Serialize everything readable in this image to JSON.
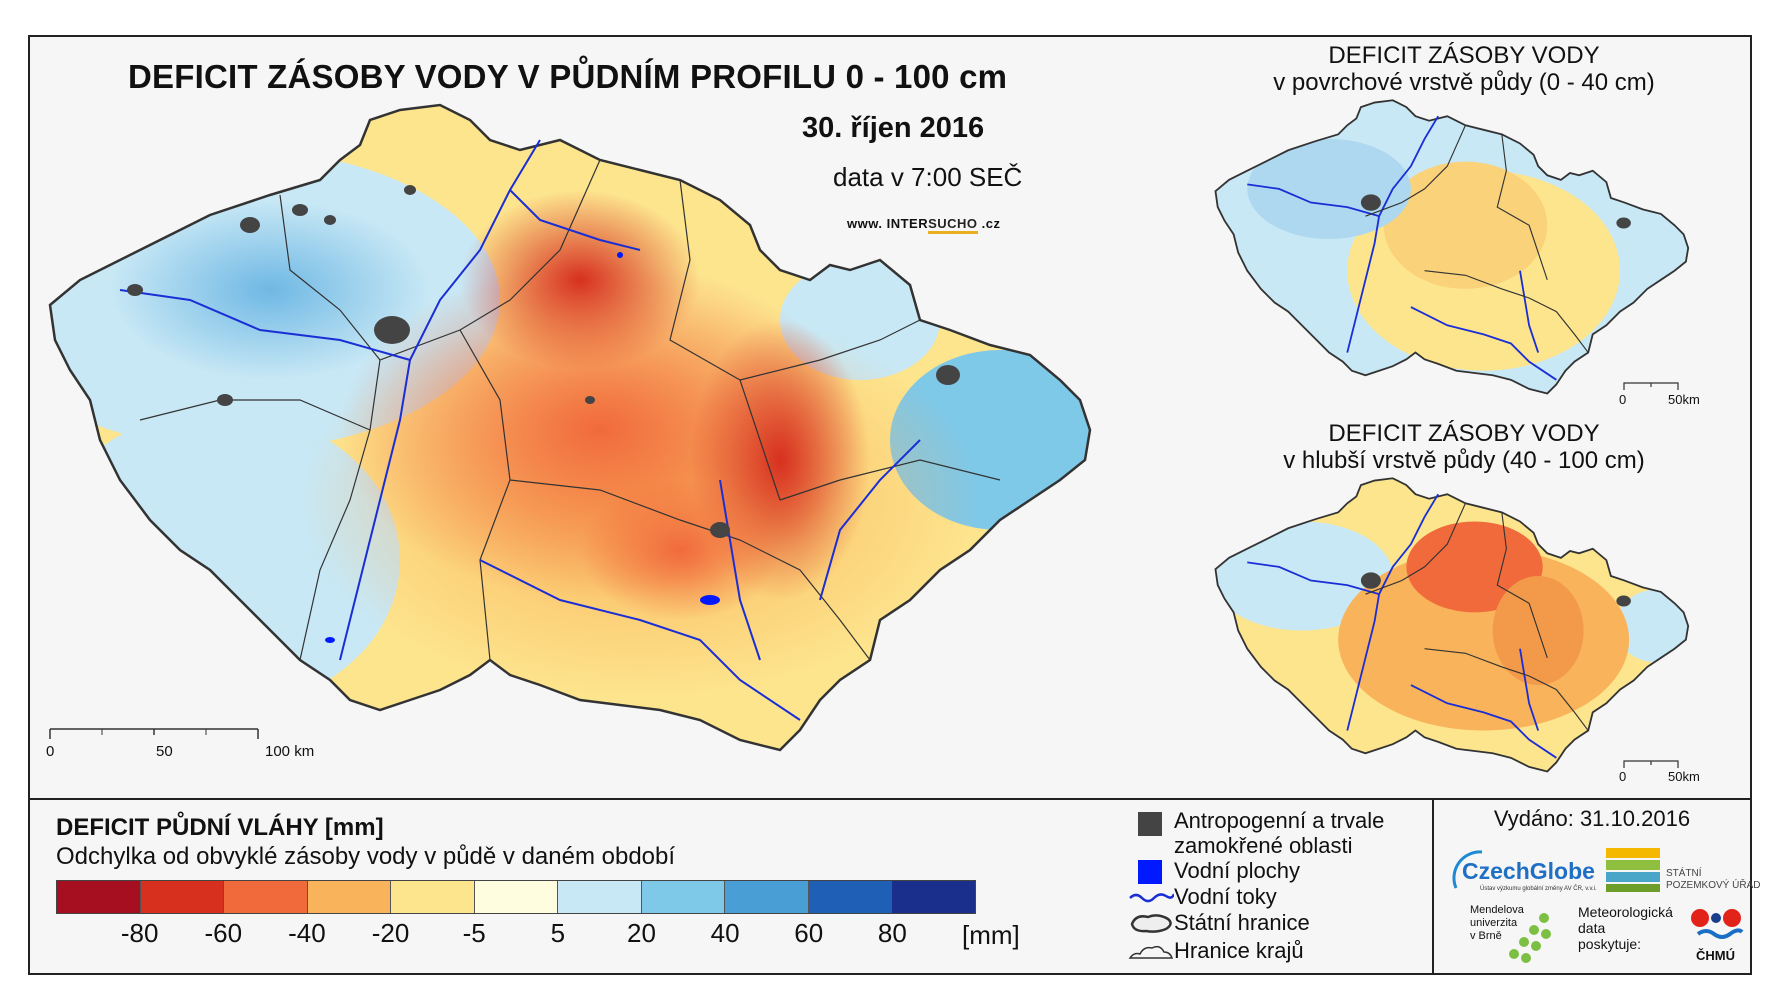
{
  "main": {
    "title": "DEFICIT ZÁSOBY VODY V PŮDNÍM PROFILU 0 - 100 cm",
    "date": "30. říjen 2016",
    "time": "data v 7:00 SEČ",
    "website": {
      "prefix": "www. INTER",
      "highlight": "SUCHO",
      "suffix": " .cz"
    },
    "scale": {
      "labels": [
        "0",
        "50",
        "100 km"
      ]
    }
  },
  "inset_top": {
    "title_line1": "DEFICIT ZÁSOBY VODY",
    "title_line2": "v povrchové vrstvě půdy (0 - 40 cm)",
    "scale": {
      "labels": [
        "0",
        "50km"
      ]
    }
  },
  "inset_bottom": {
    "title_line1": "DEFICIT ZÁSOBY VODY",
    "title_line2": "v hlubší vrstvě půdy (40 - 100 cm)",
    "scale": {
      "labels": [
        "0",
        "50km"
      ]
    }
  },
  "legend": {
    "title": "DEFICIT PŮDNÍ VLÁHY [mm]",
    "subtitle": "Odchylka od obvyklé zásoby vody v půdě v daném období",
    "colors": [
      "#a50f1f",
      "#d7301f",
      "#f16a3c",
      "#f9b35a",
      "#fde58e",
      "#fffde0",
      "#c8e8f5",
      "#7ec8e8",
      "#4a9ed6",
      "#1f5fb5",
      "#1a2e8c"
    ],
    "tick_labels": [
      "-80",
      "-60",
      "-40",
      "-20",
      "-5",
      "5",
      "20",
      "40",
      "60",
      "80"
    ],
    "unit": "[mm]"
  },
  "symbols": [
    {
      "icon": "gray-square-icon",
      "label_line1": "Antropogenní a trvale",
      "label_line2": "zamokřené oblasti"
    },
    {
      "icon": "blue-square-icon",
      "label_line1": "Vodní plochy"
    },
    {
      "icon": "river-line-icon",
      "label_line1": "Vodní toky"
    },
    {
      "icon": "state-border-icon",
      "label_line1": "Státní hranice"
    },
    {
      "icon": "region-border-icon",
      "label_line1": "Hranice krajů"
    }
  ],
  "issued": "Vydáno: 31.10.2016",
  "logos": {
    "czechglobe": "CzechGlobe",
    "czechglobe_sub": "Ústav výzkumu globální změny AV ČR, v.v.i.",
    "spu_line1": "STÁTNÍ",
    "spu_line2": "POZEMKOVÝ ÚŘAD",
    "mendel_line1": "Mendelova",
    "mendel_line2": "univerzita",
    "mendel_line3": "v Brně",
    "meteo_line1": "Meteorologická",
    "meteo_line2": "data",
    "meteo_line3": "poskytuje:",
    "chmu": "ČHMÚ"
  }
}
